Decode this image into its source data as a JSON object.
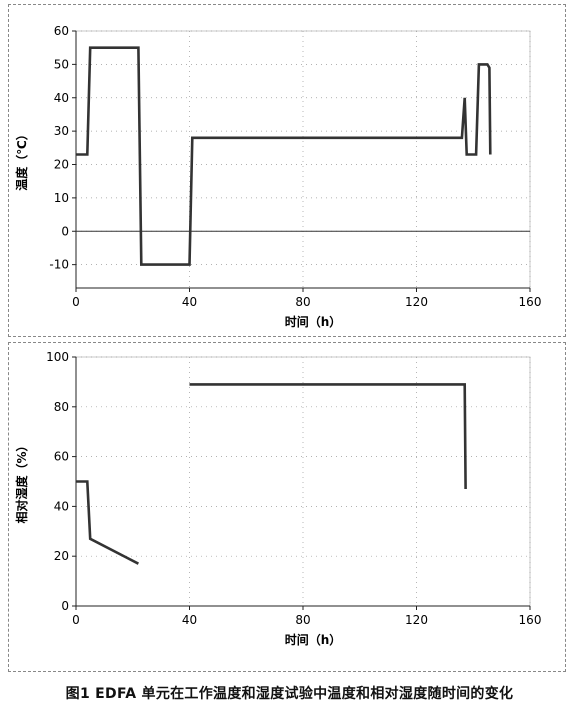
{
  "chart_data": [
    {
      "type": "line",
      "title": "",
      "xlabel": "时间（h）",
      "ylabel": "温度（℃）",
      "xlim": [
        0,
        160
      ],
      "ylim": [
        -17,
        60
      ],
      "xticks": [
        0,
        40,
        80,
        120,
        160
      ],
      "yticks": [
        -10,
        0,
        10,
        20,
        30,
        40,
        50,
        60
      ],
      "grid": true,
      "reference_line_y": 0,
      "series": [
        {
          "x": [
            0,
            4,
            5,
            22,
            23,
            40,
            41,
            136,
            137,
            137.7,
            138,
            141,
            142,
            145,
            145.7,
            146
          ],
          "y": [
            23,
            23,
            55,
            55,
            -10,
            -10,
            28,
            28,
            40,
            23,
            23,
            23,
            50,
            50,
            49,
            23
          ]
        }
      ]
    },
    {
      "type": "line",
      "title": "",
      "xlabel": "时间（h）",
      "ylabel": "相对湿度（%）",
      "xlim": [
        0,
        160
      ],
      "ylim": [
        0,
        100
      ],
      "xticks": [
        0,
        40,
        80,
        120,
        160
      ],
      "yticks": [
        0,
        20,
        40,
        60,
        80,
        100
      ],
      "grid": true,
      "series": [
        {
          "x": [
            0,
            4,
            5,
            22
          ],
          "y": [
            50,
            50,
            27,
            17
          ]
        },
        {
          "x": [
            40,
            137,
            137.3
          ],
          "y": [
            89,
            89,
            47
          ]
        }
      ]
    }
  ],
  "caption": "图1   EDFA 单元在工作温度和湿度试验中温度和相对湿度随时间的变化"
}
